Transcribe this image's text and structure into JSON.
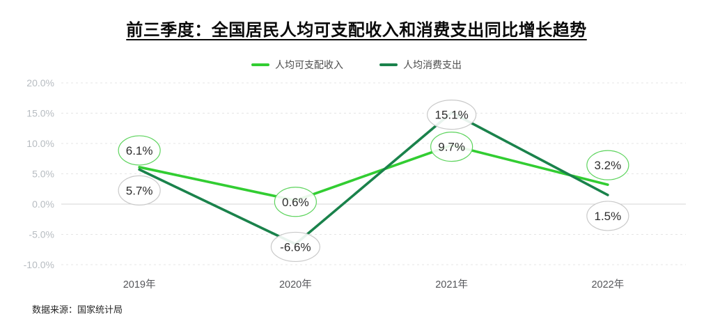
{
  "title": "前三季度：全国居民人均可支配收入和消费支出同比增长趋势",
  "source": "数据来源：国家统计局",
  "colors": {
    "income": "#32CD32",
    "expenditure": "#1A824B",
    "grid_dashed": "#e4e4e4",
    "zero_line": "#d4d4d4",
    "y_tick_label": "#b7bcc1",
    "x_tick_label": "#55565a",
    "point_label_text": "#2d2d2d",
    "gray_label_border": "#c9c9c9",
    "label_fill": "#ffffff"
  },
  "chart_data": {
    "type": "line",
    "categories": [
      "2019年",
      "2020年",
      "2021年",
      "2022年"
    ],
    "series": [
      {
        "name": "人均可支配收入",
        "values": [
          6.1,
          0.6,
          9.7,
          3.2
        ],
        "point_labels": [
          "6.1%",
          "0.6%",
          "9.7%",
          "3.2%"
        ],
        "color": "#32CD32",
        "label_border": "#5ed45e",
        "label_dy": [
          -24,
          2,
          2,
          -28
        ]
      },
      {
        "name": "人均消费支出",
        "values": [
          5.7,
          -6.6,
          15.1,
          1.5
        ],
        "point_labels": [
          "5.7%",
          "-6.6%",
          "15.1%",
          "1.5%"
        ],
        "color": "#1A824B",
        "label_border": "#c9c9c9",
        "label_dy": [
          30,
          4,
          3,
          30
        ]
      }
    ],
    "y_axis": {
      "min": -10,
      "max": 20,
      "step": 5
    },
    "y_tick_labels": [
      "20.0%",
      "15.0%",
      "10.0%",
      "5.0%",
      "0.0%",
      "-5.0%",
      "-10.0%"
    ],
    "grid": "dashed-horizontal, zero line solid",
    "legend_position": "top-center"
  }
}
